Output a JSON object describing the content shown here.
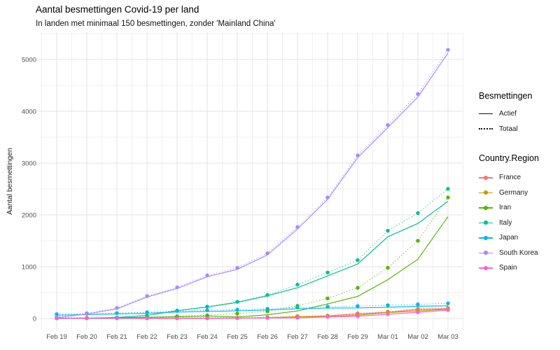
{
  "header": {
    "title": "Aantal besmettingen Covid-19 per land",
    "subtitle": "In landen met minimaal 150 besmettingen, zonder 'Mainland China'"
  },
  "legends": {
    "type": {
      "title": "Besmettingen",
      "items": [
        {
          "label": "Actief",
          "linetype": "solid"
        },
        {
          "label": "Totaal",
          "linetype": "dotted"
        }
      ]
    },
    "country": {
      "title": "Country.Region"
    }
  },
  "chart_data": {
    "type": "line",
    "title": "Aantal besmettingen Covid-19 per land",
    "subtitle": "In landen met minimaal 150 besmettingen, zonder 'Mainland China'",
    "xlabel": "",
    "ylabel": "Aantal besmettingen",
    "x": [
      "Feb 19",
      "Feb 20",
      "Feb 21",
      "Feb 22",
      "Feb 23",
      "Feb 24",
      "Feb 25",
      "Feb 26",
      "Feb 27",
      "Feb 28",
      "Feb 29",
      "Mar 01",
      "Mar 02",
      "Mar 03"
    ],
    "yticks": [
      0,
      1000,
      2000,
      3000,
      4000,
      5000
    ],
    "minor_yticks": [
      500,
      1500,
      2500,
      3500,
      4500,
      5500
    ],
    "ylim": [
      0,
      5500
    ],
    "grid": true,
    "legend_position": "right",
    "linetype_legend": {
      "Actief": "solid",
      "Totaal": "dotted"
    },
    "point_on": "totaal",
    "series": [
      {
        "name": "France",
        "color": "#F8766D",
        "totaal": [
          12,
          12,
          12,
          12,
          12,
          12,
          14,
          18,
          38,
          57,
          100,
          130,
          191,
          204
        ],
        "actief": [
          7,
          7,
          7,
          7,
          7,
          7,
          9,
          11,
          31,
          50,
          91,
          119,
          176,
          188
        ]
      },
      {
        "name": "Germany",
        "color": "#C49A00",
        "totaal": [
          16,
          16,
          16,
          16,
          16,
          16,
          17,
          27,
          46,
          48,
          79,
          130,
          159,
          196
        ],
        "actief": [
          4,
          4,
          2,
          2,
          2,
          2,
          3,
          13,
          32,
          32,
          63,
          114,
          143,
          180
        ]
      },
      {
        "name": "Iran",
        "color": "#53B400",
        "totaal": [
          2,
          5,
          18,
          28,
          43,
          61,
          95,
          139,
          245,
          388,
          593,
          978,
          1501,
          2336
        ],
        "actief": [
          0,
          3,
          14,
          23,
          35,
          49,
          30,
          71,
          146,
          281,
          427,
          749,
          1144,
          1968
        ]
      },
      {
        "name": "Italy",
        "color": "#00C094",
        "totaal": [
          3,
          3,
          20,
          62,
          155,
          229,
          322,
          453,
          655,
          888,
          1128,
          1694,
          2036,
          2502
        ],
        "actief": [
          3,
          3,
          19,
          59,
          150,
          221,
          311,
          438,
          593,
          821,
          1053,
          1577,
          1835,
          2263
        ]
      },
      {
        "name": "Japan",
        "color": "#00B6EB",
        "totaal": [
          84,
          94,
          105,
          122,
          147,
          159,
          170,
          189,
          214,
          228,
          241,
          256,
          274,
          293
        ],
        "actief": [
          65,
          75,
          86,
          103,
          124,
          136,
          147,
          165,
          188,
          202,
          204,
          218,
          236,
          244
        ]
      },
      {
        "name": "South Korea",
        "color": "#A58AFF",
        "totaal": [
          31,
          104,
          204,
          433,
          602,
          833,
          977,
          1261,
          1766,
          2337,
          3150,
          3736,
          4335,
          5186
        ],
        "actief": [
          15,
          87,
          186,
          415,
          580,
          807,
          949,
          1227,
          1729,
          2298,
          3106,
          3687,
          4276,
          5124
        ]
      },
      {
        "name": "Spain",
        "color": "#FB61D7",
        "totaal": [
          2,
          2,
          2,
          2,
          2,
          2,
          6,
          13,
          15,
          32,
          45,
          84,
          120,
          165
        ],
        "actief": [
          0,
          0,
          0,
          0,
          0,
          0,
          4,
          11,
          13,
          30,
          43,
          82,
          118,
          162
        ]
      }
    ]
  }
}
